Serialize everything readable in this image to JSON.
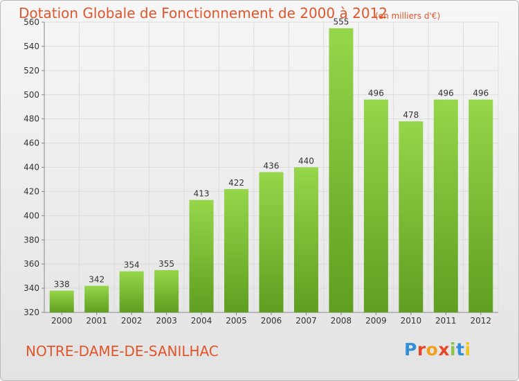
{
  "chart_data": {
    "type": "bar",
    "title": "Dotation Globale de Fonctionnement de 2000 à 2012",
    "subtitle": "(en milliers d'€)",
    "categories": [
      "2000",
      "2001",
      "2002",
      "2003",
      "2004",
      "2005",
      "2006",
      "2007",
      "2008",
      "2009",
      "2010",
      "2011",
      "2012"
    ],
    "values": [
      338,
      342,
      354,
      355,
      413,
      422,
      436,
      440,
      555,
      496,
      478,
      496,
      496
    ],
    "ylim": [
      320,
      560
    ],
    "yticks": [
      320,
      340,
      360,
      380,
      400,
      420,
      440,
      460,
      480,
      500,
      520,
      540,
      560
    ],
    "grid": true,
    "bar_color": "#7cc034",
    "bar_color_light": "#96d64a",
    "bar_color_dark": "#5f9e20",
    "title_color": "#e0552b"
  },
  "commune": "NOTRE-DAME-DE-SANILHAC",
  "logo": {
    "text": "Proxiti",
    "letters": [
      {
        "ch": "P",
        "color": "#2f8fd8"
      },
      {
        "ch": "r",
        "color": "#e8462b"
      },
      {
        "ch": "o",
        "color": "#f2a01c"
      },
      {
        "ch": "x",
        "color": "#e8462b"
      },
      {
        "ch": "i",
        "color": "#8bc34a"
      },
      {
        "ch": "t",
        "color": "#2f8fd8"
      },
      {
        "ch": "i",
        "color": "#f2c31c"
      }
    ]
  }
}
